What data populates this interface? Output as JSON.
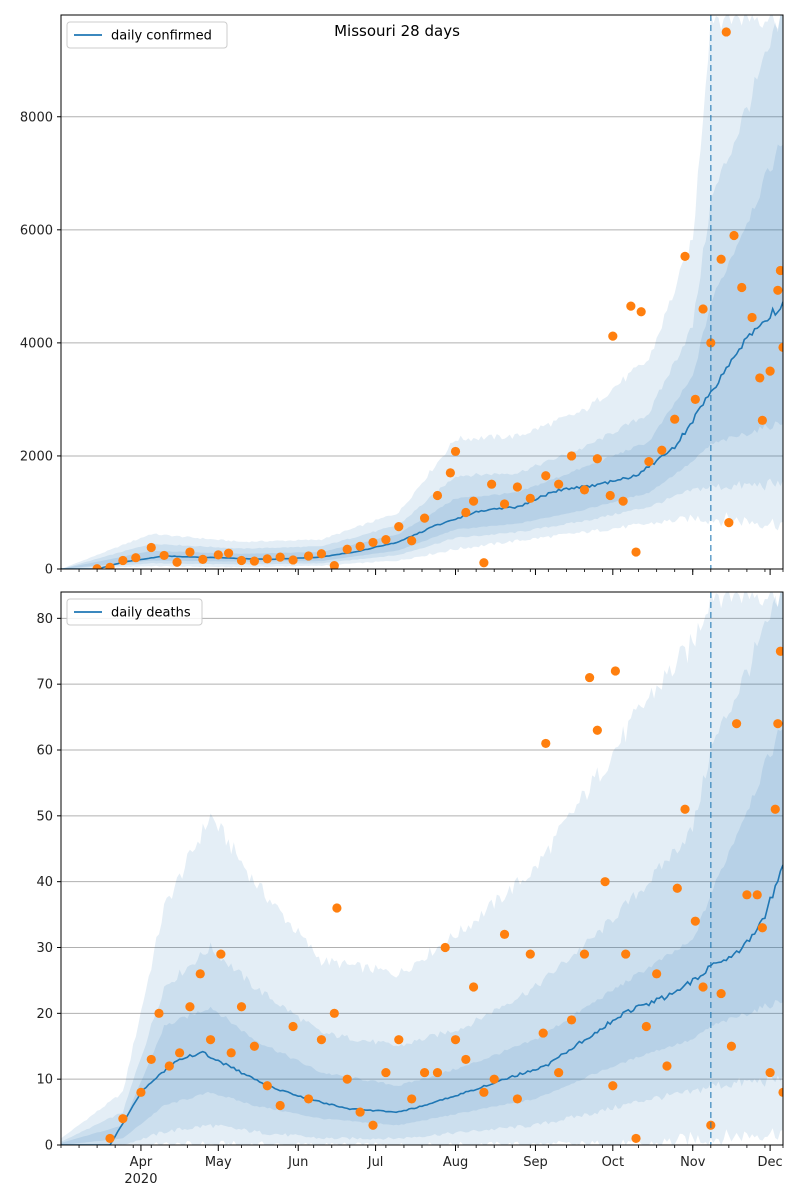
{
  "title": "Missouri 28 days",
  "colors": {
    "line": "#1f77b4",
    "points": "#ff7f0e",
    "band": "#1f77b4",
    "grid": "#b0b0b0",
    "vline": "#1f77b4"
  },
  "x_axis": {
    "months": [
      "Apr",
      "May",
      "Jun",
      "Jul",
      "Aug",
      "Sep",
      "Oct",
      "Nov",
      "Dec"
    ],
    "year_label": "2020",
    "start_date": "2020-03-01",
    "end_date": "2020-12-06",
    "forecast_start": "2020-11-08"
  },
  "chart_data": [
    {
      "type": "line",
      "panel": "confirmed",
      "series": [
        {
          "name": "daily confirmed",
          "role": "smoothed estimate"
        }
      ],
      "legend": "daily confirmed",
      "legend_position": "upper left",
      "ylim": [
        0,
        9800
      ],
      "yticks": [
        0,
        2000,
        4000,
        6000,
        8000
      ],
      "grid": "horizontal",
      "smooth_anchors": [
        [
          "2020-03-01",
          0
        ],
        [
          "2020-03-15",
          0
        ],
        [
          "2020-03-25",
          120
        ],
        [
          "2020-04-10",
          230
        ],
        [
          "2020-05-01",
          200
        ],
        [
          "2020-05-20",
          170
        ],
        [
          "2020-06-10",
          210
        ],
        [
          "2020-06-25",
          320
        ],
        [
          "2020-07-10",
          480
        ],
        [
          "2020-07-25",
          780
        ],
        [
          "2020-08-10",
          1020
        ],
        [
          "2020-08-25",
          1100
        ],
        [
          "2020-09-10",
          1400
        ],
        [
          "2020-09-25",
          1480
        ],
        [
          "2020-10-10",
          1650
        ],
        [
          "2020-10-25",
          2150
        ],
        [
          "2020-11-05",
          2900
        ],
        [
          "2020-11-12",
          3400
        ],
        [
          "2020-11-22",
          4100
        ],
        [
          "2020-12-06",
          4700
        ]
      ],
      "points": [
        [
          "2020-03-15",
          5
        ],
        [
          "2020-03-20",
          30
        ],
        [
          "2020-03-25",
          150
        ],
        [
          "2020-03-30",
          200
        ],
        [
          "2020-04-05",
          380
        ],
        [
          "2020-04-10",
          240
        ],
        [
          "2020-04-15",
          120
        ],
        [
          "2020-04-20",
          300
        ],
        [
          "2020-04-25",
          170
        ],
        [
          "2020-05-01",
          250
        ],
        [
          "2020-05-05",
          280
        ],
        [
          "2020-05-10",
          150
        ],
        [
          "2020-05-15",
          140
        ],
        [
          "2020-05-20",
          180
        ],
        [
          "2020-05-25",
          210
        ],
        [
          "2020-05-30",
          160
        ],
        [
          "2020-06-05",
          230
        ],
        [
          "2020-06-10",
          270
        ],
        [
          "2020-06-15",
          60
        ],
        [
          "2020-06-20",
          350
        ],
        [
          "2020-06-25",
          400
        ],
        [
          "2020-06-30",
          470
        ],
        [
          "2020-07-05",
          520
        ],
        [
          "2020-07-10",
          750
        ],
        [
          "2020-07-15",
          500
        ],
        [
          "2020-07-20",
          900
        ],
        [
          "2020-07-25",
          1300
        ],
        [
          "2020-07-30",
          1700
        ],
        [
          "2020-08-01",
          2080
        ],
        [
          "2020-08-05",
          1000
        ],
        [
          "2020-08-08",
          1200
        ],
        [
          "2020-08-12",
          110
        ],
        [
          "2020-08-15",
          1500
        ],
        [
          "2020-08-20",
          1150
        ],
        [
          "2020-08-25",
          1450
        ],
        [
          "2020-08-30",
          1250
        ],
        [
          "2020-09-05",
          1650
        ],
        [
          "2020-09-10",
          1500
        ],
        [
          "2020-09-15",
          2000
        ],
        [
          "2020-09-20",
          1400
        ],
        [
          "2020-09-25",
          1950
        ],
        [
          "2020-09-30",
          1300
        ],
        [
          "2020-10-01",
          4120
        ],
        [
          "2020-10-05",
          1200
        ],
        [
          "2020-10-08",
          4650
        ],
        [
          "2020-10-10",
          300
        ],
        [
          "2020-10-12",
          4550
        ],
        [
          "2020-10-15",
          1900
        ],
        [
          "2020-10-20",
          2100
        ],
        [
          "2020-10-25",
          2650
        ],
        [
          "2020-10-29",
          5530
        ],
        [
          "2020-11-02",
          3000
        ],
        [
          "2020-11-05",
          4600
        ],
        [
          "2020-11-08",
          4000
        ],
        [
          "2020-11-12",
          5480
        ],
        [
          "2020-11-15",
          820
        ],
        [
          "2020-11-17",
          5900
        ],
        [
          "2020-11-14",
          9500
        ],
        [
          "2020-11-20",
          4980
        ],
        [
          "2020-11-24",
          4450
        ],
        [
          "2020-11-27",
          3380
        ],
        [
          "2020-11-28",
          2630
        ],
        [
          "2020-12-01",
          3500
        ],
        [
          "2020-12-04",
          4930
        ],
        [
          "2020-12-05",
          5280
        ],
        [
          "2020-12-06",
          3920
        ]
      ],
      "bands": [
        {
          "level": "outer",
          "anchors": [
            [
              "2020-03-01",
              0,
              0
            ],
            [
              "2020-04-05",
              50,
              620
            ],
            [
              "2020-05-10",
              30,
              480
            ],
            [
              "2020-06-10",
              60,
              520
            ],
            [
              "2020-07-10",
              150,
              1000
            ],
            [
              "2020-08-01",
              350,
              2300
            ],
            [
              "2020-08-25",
              500,
              2350
            ],
            [
              "2020-09-20",
              650,
              2800
            ],
            [
              "2020-10-15",
              800,
              3700
            ],
            [
              "2020-11-01",
              900,
              5800
            ],
            [
              "2020-11-08",
              900,
              9800
            ],
            [
              "2020-12-06",
              800,
              9800
            ]
          ]
        },
        {
          "level": "middle",
          "anchors": [
            [
              "2020-03-01",
              0,
              0
            ],
            [
              "2020-04-05",
              100,
              450
            ],
            [
              "2020-05-10",
              80,
              360
            ],
            [
              "2020-06-10",
              100,
              400
            ],
            [
              "2020-07-10",
              250,
              780
            ],
            [
              "2020-08-01",
              550,
              1650
            ],
            [
              "2020-08-25",
              650,
              1700
            ],
            [
              "2020-09-20",
              850,
              2150
            ],
            [
              "2020-10-15",
              1100,
              2750
            ],
            [
              "2020-11-01",
              1400,
              4300
            ],
            [
              "2020-11-08",
              1450,
              6500
            ],
            [
              "2020-12-06",
              1500,
              9800
            ]
          ]
        },
        {
          "level": "inner",
          "anchors": [
            [
              "2020-03-01",
              0,
              0
            ],
            [
              "2020-04-05",
              150,
              320
            ],
            [
              "2020-05-10",
              130,
              270
            ],
            [
              "2020-06-10",
              140,
              300
            ],
            [
              "2020-07-10",
              330,
              620
            ],
            [
              "2020-08-01",
              700,
              1250
            ],
            [
              "2020-08-25",
              800,
              1350
            ],
            [
              "2020-09-20",
              1050,
              1800
            ],
            [
              "2020-10-15",
              1350,
              2250
            ],
            [
              "2020-11-01",
              1900,
              3400
            ],
            [
              "2020-11-08",
              2200,
              4700
            ],
            [
              "2020-12-06",
              2600,
              7600
            ]
          ]
        }
      ]
    },
    {
      "type": "line",
      "panel": "deaths",
      "series": [
        {
          "name": "daily deaths",
          "role": "smoothed estimate"
        }
      ],
      "legend": "daily deaths",
      "legend_position": "upper left",
      "ylim": [
        0,
        84
      ],
      "yticks": [
        0,
        10,
        20,
        30,
        40,
        50,
        60,
        70,
        80
      ],
      "grid": "horizontal",
      "smooth_anchors": [
        [
          "2020-03-01",
          0
        ],
        [
          "2020-03-20",
          0
        ],
        [
          "2020-04-01",
          8
        ],
        [
          "2020-04-15",
          13
        ],
        [
          "2020-04-25",
          14
        ],
        [
          "2020-05-05",
          12
        ],
        [
          "2020-05-20",
          9
        ],
        [
          "2020-06-05",
          7
        ],
        [
          "2020-06-20",
          5.5
        ],
        [
          "2020-07-10",
          5
        ],
        [
          "2020-07-20",
          6
        ],
        [
          "2020-08-05",
          8
        ],
        [
          "2020-08-20",
          10
        ],
        [
          "2020-09-05",
          12
        ],
        [
          "2020-09-20",
          16
        ],
        [
          "2020-10-05",
          20
        ],
        [
          "2020-10-25",
          23
        ],
        [
          "2020-11-08",
          27
        ],
        [
          "2020-11-20",
          30
        ],
        [
          "2020-11-28",
          34
        ],
        [
          "2020-12-06",
          42
        ]
      ],
      "points": [
        [
          "2020-03-20",
          1
        ],
        [
          "2020-03-25",
          4
        ],
        [
          "2020-04-01",
          8
        ],
        [
          "2020-04-05",
          13
        ],
        [
          "2020-04-08",
          20
        ],
        [
          "2020-04-12",
          12
        ],
        [
          "2020-04-16",
          14
        ],
        [
          "2020-04-20",
          21
        ],
        [
          "2020-04-24",
          26
        ],
        [
          "2020-04-28",
          16
        ],
        [
          "2020-05-02",
          29
        ],
        [
          "2020-05-06",
          14
        ],
        [
          "2020-05-10",
          21
        ],
        [
          "2020-05-15",
          15
        ],
        [
          "2020-05-20",
          9
        ],
        [
          "2020-05-25",
          6
        ],
        [
          "2020-05-30",
          18
        ],
        [
          "2020-06-05",
          7
        ],
        [
          "2020-06-10",
          16
        ],
        [
          "2020-06-15",
          20
        ],
        [
          "2020-06-16",
          36
        ],
        [
          "2020-06-20",
          10
        ],
        [
          "2020-06-25",
          5
        ],
        [
          "2020-06-30",
          3
        ],
        [
          "2020-07-05",
          11
        ],
        [
          "2020-07-10",
          16
        ],
        [
          "2020-07-15",
          7
        ],
        [
          "2020-07-20",
          11
        ],
        [
          "2020-07-25",
          11
        ],
        [
          "2020-07-28",
          30
        ],
        [
          "2020-08-01",
          16
        ],
        [
          "2020-08-05",
          13
        ],
        [
          "2020-08-08",
          24
        ],
        [
          "2020-08-12",
          8
        ],
        [
          "2020-08-16",
          10
        ],
        [
          "2020-08-20",
          32
        ],
        [
          "2020-08-25",
          7
        ],
        [
          "2020-08-30",
          29
        ],
        [
          "2020-09-04",
          17
        ],
        [
          "2020-09-05",
          61
        ],
        [
          "2020-09-10",
          11
        ],
        [
          "2020-09-15",
          19
        ],
        [
          "2020-09-20",
          29
        ],
        [
          "2020-09-22",
          71
        ],
        [
          "2020-09-25",
          63
        ],
        [
          "2020-09-28",
          40
        ],
        [
          "2020-10-01",
          9
        ],
        [
          "2020-10-02",
          72
        ],
        [
          "2020-10-06",
          29
        ],
        [
          "2020-10-10",
          1
        ],
        [
          "2020-10-14",
          18
        ],
        [
          "2020-10-18",
          26
        ],
        [
          "2020-10-22",
          12
        ],
        [
          "2020-10-26",
          39
        ],
        [
          "2020-10-29",
          51
        ],
        [
          "2020-11-02",
          34
        ],
        [
          "2020-11-05",
          24
        ],
        [
          "2020-11-08",
          3
        ],
        [
          "2020-11-12",
          23
        ],
        [
          "2020-11-16",
          15
        ],
        [
          "2020-11-18",
          64
        ],
        [
          "2020-11-22",
          38
        ],
        [
          "2020-11-26",
          38
        ],
        [
          "2020-11-28",
          33
        ],
        [
          "2020-12-01",
          11
        ],
        [
          "2020-12-03",
          51
        ],
        [
          "2020-12-04",
          64
        ],
        [
          "2020-12-05",
          75
        ],
        [
          "2020-12-06",
          8
        ]
      ],
      "bands": [
        {
          "level": "outer",
          "anchors": [
            [
              "2020-03-01",
              0,
              1
            ],
            [
              "2020-03-25",
              0,
              8
            ],
            [
              "2020-04-10",
              0,
              36
            ],
            [
              "2020-04-28",
              0,
              50
            ],
            [
              "2020-05-15",
              0,
              40
            ],
            [
              "2020-06-10",
              0,
              28
            ],
            [
              "2020-07-10",
              0,
              26
            ],
            [
              "2020-08-05",
              0,
              33
            ],
            [
              "2020-09-01",
              0,
              42
            ],
            [
              "2020-09-25",
              0,
              56
            ],
            [
              "2020-10-15",
              0,
              68
            ],
            [
              "2020-11-01",
              1,
              76
            ],
            [
              "2020-11-08",
              1,
              84
            ],
            [
              "2020-12-06",
              2,
              84
            ]
          ]
        },
        {
          "level": "middle",
          "anchors": [
            [
              "2020-03-01",
              0,
              0.5
            ],
            [
              "2020-03-25",
              0,
              5
            ],
            [
              "2020-04-10",
              2,
              24
            ],
            [
              "2020-04-28",
              3,
              30
            ],
            [
              "2020-05-15",
              2,
              24
            ],
            [
              "2020-06-10",
              1,
              17
            ],
            [
              "2020-07-10",
              1,
              15
            ],
            [
              "2020-08-05",
              2,
              18
            ],
            [
              "2020-09-01",
              3,
              24
            ],
            [
              "2020-09-25",
              5,
              32
            ],
            [
              "2020-10-15",
              7,
              40
            ],
            [
              "2020-11-01",
              8,
              48
            ],
            [
              "2020-11-08",
              9,
              60
            ],
            [
              "2020-12-06",
              10,
              84
            ]
          ]
        },
        {
          "level": "inner",
          "anchors": [
            [
              "2020-03-01",
              0,
              0.3
            ],
            [
              "2020-03-25",
              1,
              3
            ],
            [
              "2020-04-10",
              6,
              18
            ],
            [
              "2020-04-28",
              8,
              21
            ],
            [
              "2020-05-15",
              6,
              16
            ],
            [
              "2020-06-10",
              4,
              11
            ],
            [
              "2020-07-10",
              3,
              9
            ],
            [
              "2020-08-05",
              5,
              12
            ],
            [
              "2020-09-01",
              7,
              16
            ],
            [
              "2020-09-25",
              11,
              22
            ],
            [
              "2020-10-15",
              14,
              27
            ],
            [
              "2020-11-01",
              16,
              31
            ],
            [
              "2020-11-08",
              18,
              38
            ],
            [
              "2020-12-06",
              22,
              64
            ]
          ]
        }
      ]
    }
  ]
}
